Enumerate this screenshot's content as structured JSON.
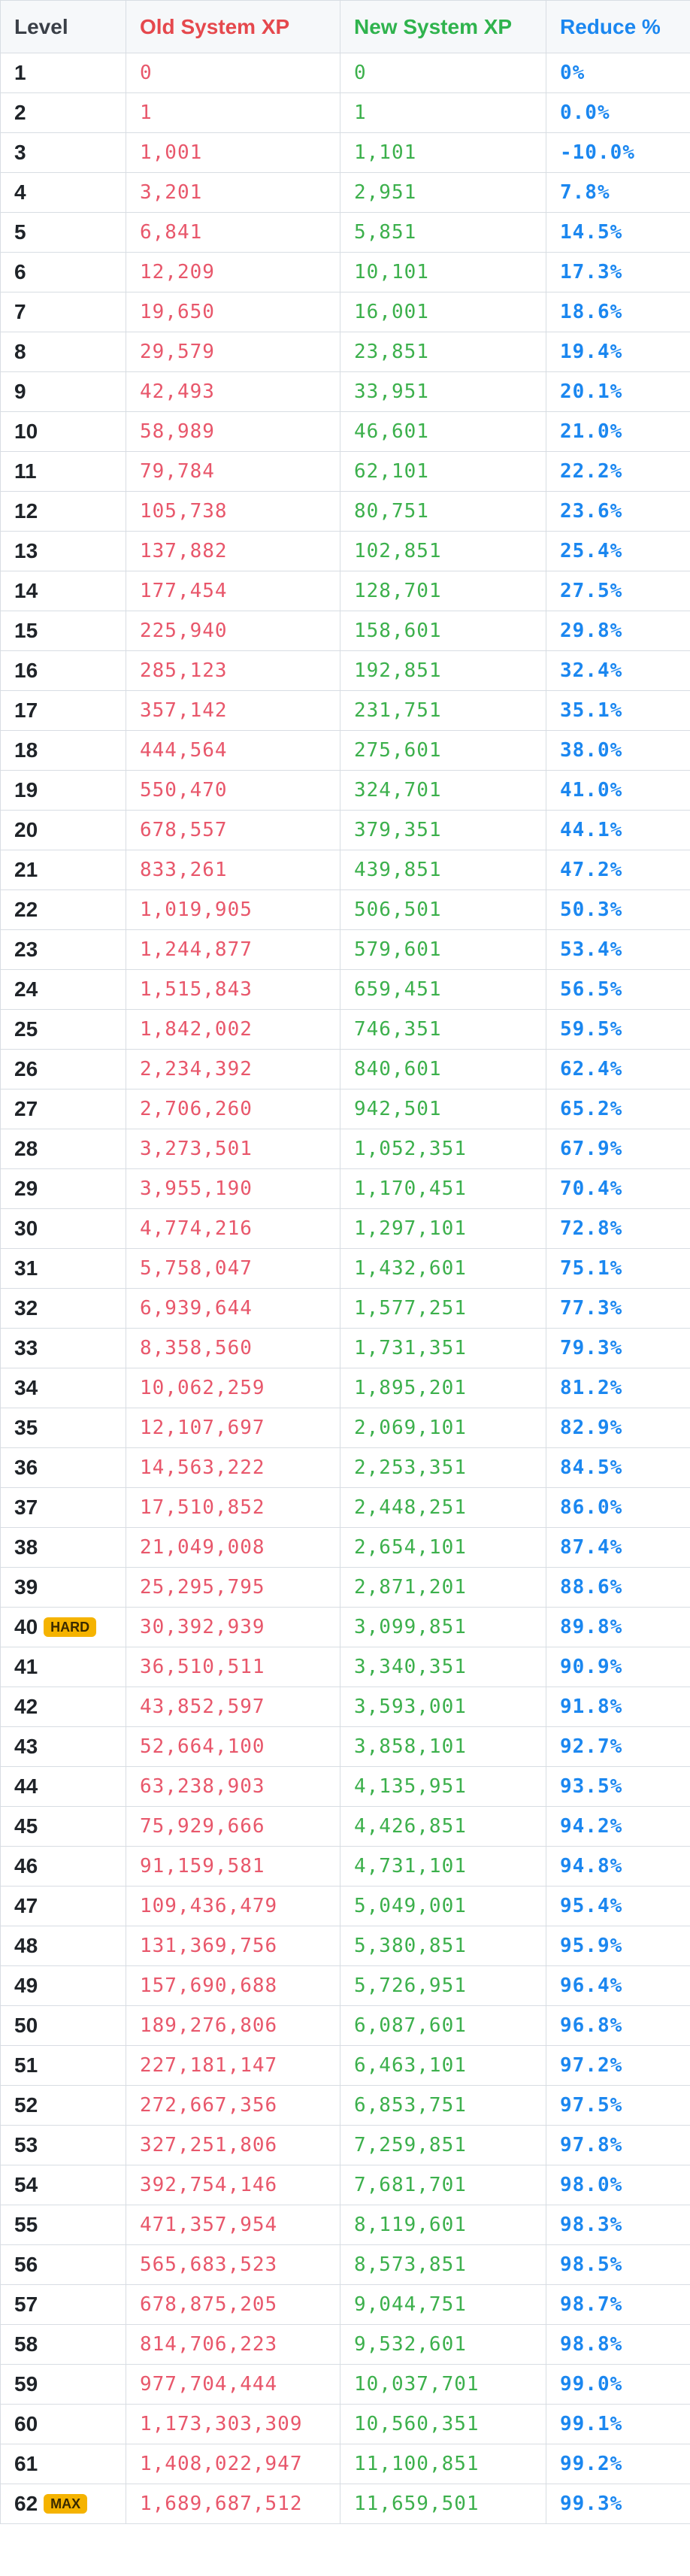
{
  "headers": {
    "level": "Level",
    "old_xp": "Old System XP",
    "new_xp": "New System XP",
    "reduce": "Reduce %"
  },
  "colors": {
    "old": "#e8576b",
    "new": "#3cb04c",
    "reduce": "#1b87f0",
    "badge": "#f5b300"
  },
  "rows": [
    {
      "level": "1",
      "old": "0",
      "new": "0",
      "reduce": "0%"
    },
    {
      "level": "2",
      "old": "1",
      "new": "1",
      "reduce": "0.0%"
    },
    {
      "level": "3",
      "old": "1,001",
      "new": "1,101",
      "reduce": "-10.0%"
    },
    {
      "level": "4",
      "old": "3,201",
      "new": "2,951",
      "reduce": "7.8%"
    },
    {
      "level": "5",
      "old": "6,841",
      "new": "5,851",
      "reduce": "14.5%"
    },
    {
      "level": "6",
      "old": "12,209",
      "new": "10,101",
      "reduce": "17.3%"
    },
    {
      "level": "7",
      "old": "19,650",
      "new": "16,001",
      "reduce": "18.6%"
    },
    {
      "level": "8",
      "old": "29,579",
      "new": "23,851",
      "reduce": "19.4%"
    },
    {
      "level": "9",
      "old": "42,493",
      "new": "33,951",
      "reduce": "20.1%"
    },
    {
      "level": "10",
      "old": "58,989",
      "new": "46,601",
      "reduce": "21.0%"
    },
    {
      "level": "11",
      "old": "79,784",
      "new": "62,101",
      "reduce": "22.2%"
    },
    {
      "level": "12",
      "old": "105,738",
      "new": "80,751",
      "reduce": "23.6%"
    },
    {
      "level": "13",
      "old": "137,882",
      "new": "102,851",
      "reduce": "25.4%"
    },
    {
      "level": "14",
      "old": "177,454",
      "new": "128,701",
      "reduce": "27.5%"
    },
    {
      "level": "15",
      "old": "225,940",
      "new": "158,601",
      "reduce": "29.8%"
    },
    {
      "level": "16",
      "old": "285,123",
      "new": "192,851",
      "reduce": "32.4%"
    },
    {
      "level": "17",
      "old": "357,142",
      "new": "231,751",
      "reduce": "35.1%"
    },
    {
      "level": "18",
      "old": "444,564",
      "new": "275,601",
      "reduce": "38.0%"
    },
    {
      "level": "19",
      "old": "550,470",
      "new": "324,701",
      "reduce": "41.0%"
    },
    {
      "level": "20",
      "old": "678,557",
      "new": "379,351",
      "reduce": "44.1%"
    },
    {
      "level": "21",
      "old": "833,261",
      "new": "439,851",
      "reduce": "47.2%"
    },
    {
      "level": "22",
      "old": "1,019,905",
      "new": "506,501",
      "reduce": "50.3%"
    },
    {
      "level": "23",
      "old": "1,244,877",
      "new": "579,601",
      "reduce": "53.4%"
    },
    {
      "level": "24",
      "old": "1,515,843",
      "new": "659,451",
      "reduce": "56.5%"
    },
    {
      "level": "25",
      "old": "1,842,002",
      "new": "746,351",
      "reduce": "59.5%"
    },
    {
      "level": "26",
      "old": "2,234,392",
      "new": "840,601",
      "reduce": "62.4%"
    },
    {
      "level": "27",
      "old": "2,706,260",
      "new": "942,501",
      "reduce": "65.2%"
    },
    {
      "level": "28",
      "old": "3,273,501",
      "new": "1,052,351",
      "reduce": "67.9%"
    },
    {
      "level": "29",
      "old": "3,955,190",
      "new": "1,170,451",
      "reduce": "70.4%"
    },
    {
      "level": "30",
      "old": "4,774,216",
      "new": "1,297,101",
      "reduce": "72.8%"
    },
    {
      "level": "31",
      "old": "5,758,047",
      "new": "1,432,601",
      "reduce": "75.1%"
    },
    {
      "level": "32",
      "old": "6,939,644",
      "new": "1,577,251",
      "reduce": "77.3%"
    },
    {
      "level": "33",
      "old": "8,358,560",
      "new": "1,731,351",
      "reduce": "79.3%"
    },
    {
      "level": "34",
      "old": "10,062,259",
      "new": "1,895,201",
      "reduce": "81.2%"
    },
    {
      "level": "35",
      "old": "12,107,697",
      "new": "2,069,101",
      "reduce": "82.9%"
    },
    {
      "level": "36",
      "old": "14,563,222",
      "new": "2,253,351",
      "reduce": "84.5%"
    },
    {
      "level": "37",
      "old": "17,510,852",
      "new": "2,448,251",
      "reduce": "86.0%"
    },
    {
      "level": "38",
      "old": "21,049,008",
      "new": "2,654,101",
      "reduce": "87.4%"
    },
    {
      "level": "39",
      "old": "25,295,795",
      "new": "2,871,201",
      "reduce": "88.6%"
    },
    {
      "level": "40",
      "badge": "HARD",
      "old": "30,392,939",
      "new": "3,099,851",
      "reduce": "89.8%"
    },
    {
      "level": "41",
      "old": "36,510,511",
      "new": "3,340,351",
      "reduce": "90.9%"
    },
    {
      "level": "42",
      "old": "43,852,597",
      "new": "3,593,001",
      "reduce": "91.8%"
    },
    {
      "level": "43",
      "old": "52,664,100",
      "new": "3,858,101",
      "reduce": "92.7%"
    },
    {
      "level": "44",
      "old": "63,238,903",
      "new": "4,135,951",
      "reduce": "93.5%"
    },
    {
      "level": "45",
      "old": "75,929,666",
      "new": "4,426,851",
      "reduce": "94.2%"
    },
    {
      "level": "46",
      "old": "91,159,581",
      "new": "4,731,101",
      "reduce": "94.8%"
    },
    {
      "level": "47",
      "old": "109,436,479",
      "new": "5,049,001",
      "reduce": "95.4%"
    },
    {
      "level": "48",
      "old": "131,369,756",
      "new": "5,380,851",
      "reduce": "95.9%"
    },
    {
      "level": "49",
      "old": "157,690,688",
      "new": "5,726,951",
      "reduce": "96.4%"
    },
    {
      "level": "50",
      "old": "189,276,806",
      "new": "6,087,601",
      "reduce": "96.8%"
    },
    {
      "level": "51",
      "old": "227,181,147",
      "new": "6,463,101",
      "reduce": "97.2%"
    },
    {
      "level": "52",
      "old": "272,667,356",
      "new": "6,853,751",
      "reduce": "97.5%"
    },
    {
      "level": "53",
      "old": "327,251,806",
      "new": "7,259,851",
      "reduce": "97.8%"
    },
    {
      "level": "54",
      "old": "392,754,146",
      "new": "7,681,701",
      "reduce": "98.0%"
    },
    {
      "level": "55",
      "old": "471,357,954",
      "new": "8,119,601",
      "reduce": "98.3%"
    },
    {
      "level": "56",
      "old": "565,683,523",
      "new": "8,573,851",
      "reduce": "98.5%"
    },
    {
      "level": "57",
      "old": "678,875,205",
      "new": "9,044,751",
      "reduce": "98.7%"
    },
    {
      "level": "58",
      "old": "814,706,223",
      "new": "9,532,601",
      "reduce": "98.8%"
    },
    {
      "level": "59",
      "old": "977,704,444",
      "new": "10,037,701",
      "reduce": "99.0%"
    },
    {
      "level": "60",
      "old": "1,173,303,309",
      "new": "10,560,351",
      "reduce": "99.1%"
    },
    {
      "level": "61",
      "old": "1,408,022,947",
      "new": "11,100,851",
      "reduce": "99.2%"
    },
    {
      "level": "62",
      "badge": "MAX",
      "old": "1,689,687,512",
      "new": "11,659,501",
      "reduce": "99.3%"
    }
  ]
}
